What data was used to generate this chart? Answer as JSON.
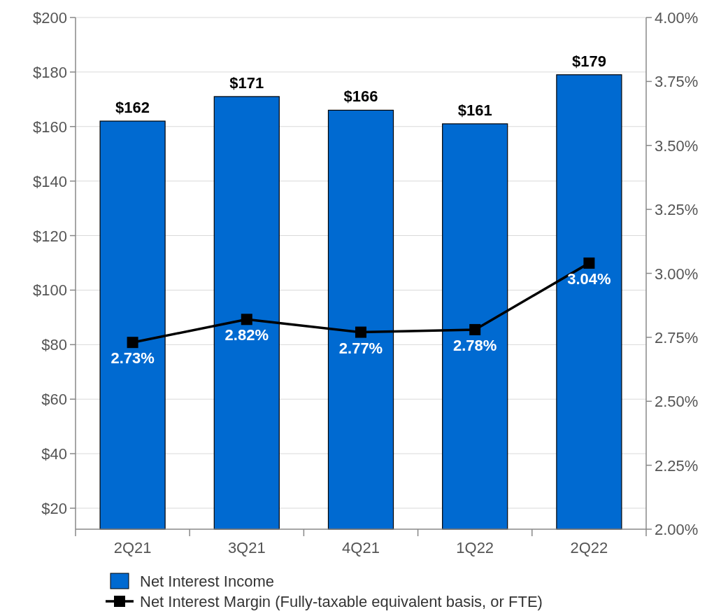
{
  "chart_data": {
    "type": "bar",
    "categories": [
      "2Q21",
      "3Q21",
      "4Q21",
      "1Q22",
      "2Q22"
    ],
    "series": [
      {
        "name": "Net Interest Income",
        "color": "#006ad1",
        "values": [
          162,
          171,
          166,
          161,
          179
        ],
        "value_labels": [
          "$162",
          "$171",
          "$166",
          "$161",
          "$179"
        ]
      },
      {
        "name": "Net Interest Margin (Fully-taxable equivalent basis, or FTE)",
        "type": "line",
        "axis": "y2",
        "color": "#000000",
        "values": [
          2.73,
          2.82,
          2.77,
          2.78,
          3.04
        ],
        "value_labels": [
          "2.73%",
          "2.82%",
          "2.77%",
          "2.78%",
          "3.04%"
        ],
        "marker": "square",
        "line_style": "solid"
      }
    ],
    "ylim": [
      12.3,
      200
    ],
    "yticks": [
      {
        "value": 20,
        "label": "$20"
      },
      {
        "value": 40,
        "label": "$40"
      },
      {
        "value": 60,
        "label": "$60"
      },
      {
        "value": 80,
        "label": "$80"
      },
      {
        "value": 100,
        "label": "$100"
      },
      {
        "value": 120,
        "label": "$120"
      },
      {
        "value": 140,
        "label": "$140"
      },
      {
        "value": 160,
        "label": "$160"
      },
      {
        "value": 180,
        "label": "$180"
      },
      {
        "value": 200,
        "label": "$200"
      }
    ],
    "y2lim": [
      2,
      4
    ],
    "y2ticks": [
      {
        "value": 2,
        "label": "2.00%"
      },
      {
        "value": 2.25,
        "label": "2.25%"
      },
      {
        "value": 2.5,
        "label": "2.50%"
      },
      {
        "value": 2.75,
        "label": "2.75%"
      },
      {
        "value": 3,
        "label": "3.00%"
      },
      {
        "value": 3.25,
        "label": "3.25%"
      },
      {
        "value": 3.5,
        "label": "3.50%"
      },
      {
        "value": 3.75,
        "label": "3.75%"
      },
      {
        "value": 4,
        "label": "4.00%"
      }
    ],
    "grid": "y",
    "legend": "bottom"
  }
}
